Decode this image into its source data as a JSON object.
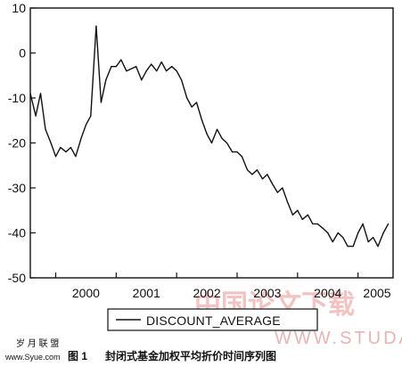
{
  "chart_data": {
    "type": "line",
    "series": [
      {
        "name": "DISCOUNT_AVERAGE",
        "x": [
          1999.58,
          1999.67,
          1999.75,
          1999.83,
          1999.92,
          2000.0,
          2000.08,
          2000.17,
          2000.25,
          2000.33,
          2000.42,
          2000.5,
          2000.58,
          2000.67,
          2000.75,
          2000.83,
          2000.92,
          2001.0,
          2001.08,
          2001.17,
          2001.25,
          2001.33,
          2001.42,
          2001.5,
          2001.58,
          2001.67,
          2001.75,
          2001.83,
          2001.92,
          2002.0,
          2002.08,
          2002.17,
          2002.25,
          2002.33,
          2002.42,
          2002.5,
          2002.58,
          2002.67,
          2002.75,
          2002.83,
          2002.92,
          2003.0,
          2003.08,
          2003.17,
          2003.25,
          2003.33,
          2003.42,
          2003.5,
          2003.58,
          2003.67,
          2003.75,
          2003.83,
          2003.92,
          2004.0,
          2004.08,
          2004.17,
          2004.25,
          2004.33,
          2004.42,
          2004.5,
          2004.58,
          2004.67,
          2004.75,
          2004.83,
          2004.92,
          2005.0,
          2005.08,
          2005.17,
          2005.25,
          2005.33,
          2005.42,
          2005.5
        ],
        "values": [
          -9,
          -14,
          -9,
          -17,
          -20,
          -23,
          -21,
          -22,
          -21,
          -23,
          -19,
          -16,
          -14,
          6,
          -11,
          -6,
          -3,
          -3,
          -1.5,
          -4,
          -3.5,
          -3,
          -6,
          -4,
          -2.5,
          -4,
          -2,
          -4,
          -3,
          -4,
          -6,
          -10,
          -12,
          -11,
          -15,
          -18,
          -20,
          -17,
          -19,
          -20,
          -22,
          -22,
          -23,
          -26,
          -27,
          -26,
          -28,
          -27,
          -29,
          -31,
          -30,
          -33,
          -36,
          -35,
          -37,
          -36,
          -38,
          -38,
          -39,
          -40,
          -42,
          -40,
          -41,
          -43,
          -43,
          -40,
          -38,
          -42,
          -41,
          -43,
          -40,
          -38
        ]
      }
    ],
    "x_tick_labels": [
      "2000",
      "2001",
      "2002",
      "2003",
      "2004",
      "2005"
    ],
    "y_tick_labels": [
      "10",
      "0",
      "-10",
      "-20",
      "-30",
      "-40",
      "-50"
    ],
    "x_ticks": [
      2000,
      2001,
      2002,
      2003,
      2004,
      2005
    ],
    "y_ticks": [
      10,
      0,
      -10,
      -20,
      -30,
      -40,
      -50
    ],
    "xlim": [
      1999.58,
      2005.58
    ],
    "ylim": [
      -50,
      10
    ],
    "xlabel": "",
    "ylabel": "",
    "title": "",
    "grid": false,
    "legend_placement": "bottom-center",
    "line_color": "#111111"
  },
  "caption": {
    "figure_label": "图 1",
    "text": "封闭式基金加权平均折价时间序列图"
  },
  "watermark": {
    "site_text": "中国论文下载",
    "url_text": "WWW.STUDA."
  },
  "brand": {
    "name": "岁 月 联 盟",
    "url": "www.Syue.com"
  }
}
